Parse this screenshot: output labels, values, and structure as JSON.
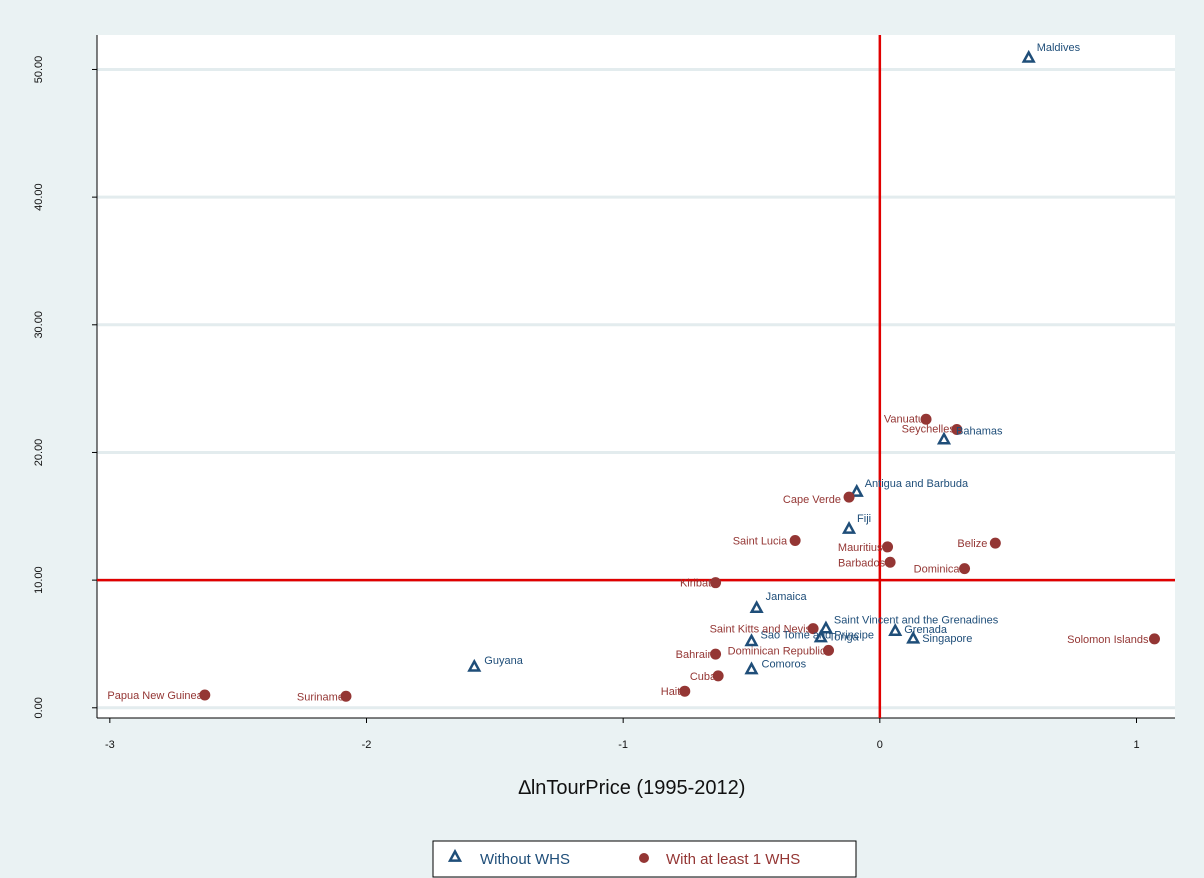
{
  "chart_data": {
    "type": "scatter",
    "xlabel": "∆lnTourPrice (1995-2012)",
    "ylabel": "",
    "xlim": [
      -3.05,
      1.15
    ],
    "ylim": [
      -0.8,
      52.7
    ],
    "x_ticks": [
      -3,
      -2,
      -1,
      0,
      1
    ],
    "x_tick_labels": [
      "-3",
      "-2",
      "-1",
      "0",
      "1"
    ],
    "y_ticks": [
      0,
      10,
      20,
      30,
      40,
      50
    ],
    "y_tick_labels": [
      "0.00",
      "10.00",
      "20.00",
      "30.00",
      "40.00",
      "50.00"
    ],
    "grid": "horizontal",
    "reference_lines": {
      "x": 0,
      "y": 10
    },
    "legend_position": "bottom",
    "colors": {
      "without_whs": "#1f4e79",
      "with_whs": "#943634",
      "reference": "#e00000"
    },
    "series": [
      {
        "name": "Without WHS",
        "marker": "triangle",
        "points": [
          {
            "label": "Maldives",
            "x": 0.58,
            "y": 50.9
          },
          {
            "label": "Bahamas",
            "x": 0.25,
            "y": 21.0
          },
          {
            "label": "Antigua and Barbuda",
            "x": -0.09,
            "y": 16.9
          },
          {
            "label": "Fiji",
            "x": -0.12,
            "y": 14.0
          },
          {
            "label": "Jamaica",
            "x": -0.48,
            "y": 7.8
          },
          {
            "label": "Saint Vincent and the Grenadines",
            "x": -0.21,
            "y": 6.2
          },
          {
            "label": "Tonga",
            "x": -0.23,
            "y": 5.5
          },
          {
            "label": "Grenada",
            "x": 0.06,
            "y": 6.0
          },
          {
            "label": "Sao Tome and Principe",
            "x": -0.5,
            "y": 5.2
          },
          {
            "label": "Singapore",
            "x": 0.13,
            "y": 5.4
          },
          {
            "label": "Comoros",
            "x": -0.5,
            "y": 3.0
          },
          {
            "label": "Guyana",
            "x": -1.58,
            "y": 3.2
          }
        ]
      },
      {
        "name": "With at least 1 WHS",
        "marker": "circle",
        "points": [
          {
            "label": "Vanuatu",
            "x": 0.18,
            "y": 22.6
          },
          {
            "label": "Seychelles",
            "x": 0.3,
            "y": 21.8
          },
          {
            "label": "Cape Verde",
            "x": -0.12,
            "y": 16.5
          },
          {
            "label": "Saint Lucia",
            "x": -0.33,
            "y": 13.1
          },
          {
            "label": "Belize",
            "x": 0.45,
            "y": 12.9
          },
          {
            "label": "Mauritius",
            "x": 0.03,
            "y": 12.6
          },
          {
            "label": "Barbados",
            "x": 0.04,
            "y": 11.4
          },
          {
            "label": "Dominica",
            "x": 0.33,
            "y": 10.9
          },
          {
            "label": "Kiribati",
            "x": -0.64,
            "y": 9.8
          },
          {
            "label": "Saint Kitts and Nevis",
            "x": -0.26,
            "y": 6.2
          },
          {
            "label": "Dominican Republic",
            "x": -0.2,
            "y": 4.5
          },
          {
            "label": "Bahrain",
            "x": -0.64,
            "y": 4.2
          },
          {
            "label": "Cuba",
            "x": -0.63,
            "y": 2.5
          },
          {
            "label": "Haiti",
            "x": -0.76,
            "y": 1.3
          },
          {
            "label": "Solomon Islands",
            "x": 1.07,
            "y": 5.4
          },
          {
            "label": "Suriname",
            "x": -2.08,
            "y": 0.9
          },
          {
            "label": "Papua New Guinea",
            "x": -2.63,
            "y": 1.0
          }
        ]
      }
    ]
  }
}
